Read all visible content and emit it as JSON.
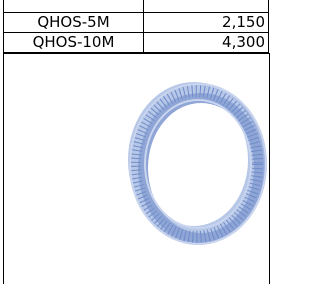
{
  "table": {
    "rows": [
      [
        "QHOS-5M",
        "2,150"
      ],
      [
        "QHOS-10M",
        "4,300"
      ]
    ]
  }
}
